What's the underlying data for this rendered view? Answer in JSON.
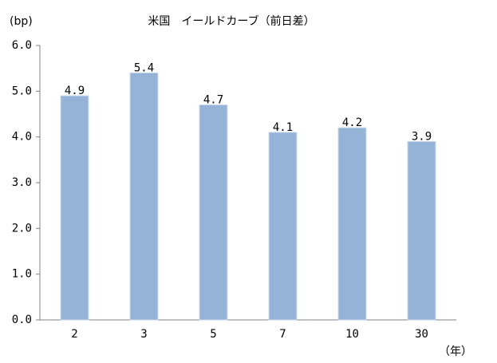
{
  "chart_data": {
    "type": "bar",
    "title": "米国　イールドカーブ（前日差）",
    "y_label": "(bp)",
    "x_label": "（年）",
    "categories": [
      "2",
      "3",
      "5",
      "7",
      "10",
      "30"
    ],
    "values": [
      4.9,
      5.4,
      4.7,
      4.1,
      4.2,
      3.9
    ],
    "color": "#95b3d7",
    "ylim": [
      0,
      6
    ],
    "yticks": [
      {
        "value": 0,
        "label": "0.0"
      },
      {
        "value": 1,
        "label": "1.0"
      },
      {
        "value": 2,
        "label": "2.0"
      },
      {
        "value": 3,
        "label": "3.0"
      },
      {
        "value": 4,
        "label": "4.0"
      },
      {
        "value": 5,
        "label": "5.0"
      },
      {
        "value": 6,
        "label": "6.0"
      }
    ],
    "grid": false
  }
}
